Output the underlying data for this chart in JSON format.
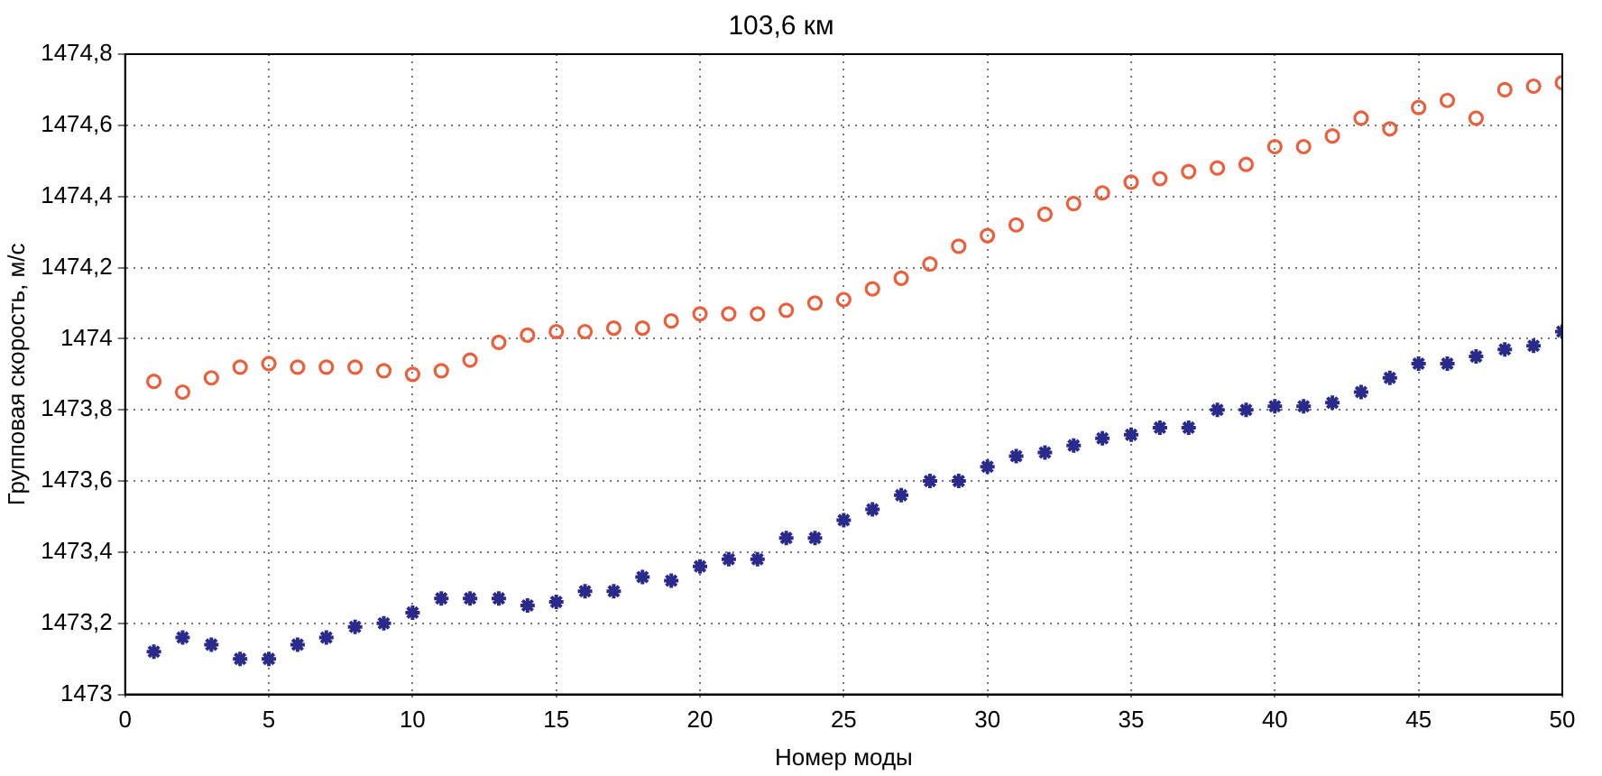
{
  "chart_data": {
    "type": "scatter",
    "title": "103,6 км",
    "xlabel": "Номер моды",
    "ylabel": "Групповая скорость, м/с",
    "x": [
      1,
      2,
      3,
      4,
      5,
      6,
      7,
      8,
      9,
      10,
      11,
      12,
      13,
      14,
      15,
      16,
      17,
      18,
      19,
      20,
      21,
      22,
      23,
      24,
      25,
      26,
      27,
      28,
      29,
      30,
      31,
      32,
      33,
      34,
      35,
      36,
      37,
      38,
      39,
      40,
      41,
      42,
      43,
      44,
      45,
      46,
      47,
      48,
      49,
      50
    ],
    "series": [
      {
        "color": "#e8603c",
        "marker": "circle",
        "values": [
          1473.88,
          1473.85,
          1473.89,
          1473.92,
          1473.93,
          1473.92,
          1473.92,
          1473.92,
          1473.91,
          1473.9,
          1473.91,
          1473.94,
          1473.99,
          1474.01,
          1474.02,
          1474.02,
          1474.03,
          1474.03,
          1474.05,
          1474.07,
          1474.07,
          1474.07,
          1474.08,
          1474.1,
          1474.11,
          1474.14,
          1474.17,
          1474.21,
          1474.26,
          1474.29,
          1474.32,
          1474.35,
          1474.38,
          1474.41,
          1474.44,
          1474.45,
          1474.47,
          1474.48,
          1474.49,
          1474.54,
          1474.54,
          1474.57,
          1474.62,
          1474.59,
          1474.65,
          1474.67,
          1474.62,
          1474.7,
          1474.71,
          1474.72
        ]
      },
      {
        "color": "#2a2a8c",
        "marker": "cross",
        "values": [
          1473.12,
          1473.16,
          1473.14,
          1473.1,
          1473.1,
          1473.14,
          1473.16,
          1473.19,
          1473.2,
          1473.23,
          1473.27,
          1473.27,
          1473.27,
          1473.25,
          1473.26,
          1473.29,
          1473.29,
          1473.33,
          1473.32,
          1473.36,
          1473.38,
          1473.38,
          1473.44,
          1473.44,
          1473.49,
          1473.52,
          1473.56,
          1473.6,
          1473.6,
          1473.64,
          1473.67,
          1473.68,
          1473.7,
          1473.72,
          1473.73,
          1473.75,
          1473.75,
          1473.8,
          1473.8,
          1473.81,
          1473.81,
          1473.82,
          1473.85,
          1473.89,
          1473.93,
          1473.93,
          1473.95,
          1473.97,
          1473.98,
          1474.02
        ]
      }
    ],
    "xlim": [
      0,
      50
    ],
    "xticks": [
      0,
      5,
      10,
      15,
      20,
      25,
      30,
      35,
      40,
      45,
      50
    ],
    "ylim": [
      1473,
      1474.8
    ],
    "yticks": [
      1473,
      {
        "value": 1473.2,
        "label": "1473,2"
      },
      {
        "value": 1473.4,
        "label": "1473,4"
      },
      {
        "value": 1473.6,
        "label": "1473,6"
      },
      {
        "value": 1473.8,
        "label": "1473,8"
      },
      1474,
      {
        "value": 1474.2,
        "label": "1474,2"
      },
      {
        "value": 1474.4,
        "label": "1474,4"
      },
      {
        "value": 1474.6,
        "label": "1474,6"
      },
      {
        "value": 1474.8,
        "label": "1474,8"
      }
    ],
    "grid": true,
    "line_style": "dotted",
    "legend": false
  }
}
